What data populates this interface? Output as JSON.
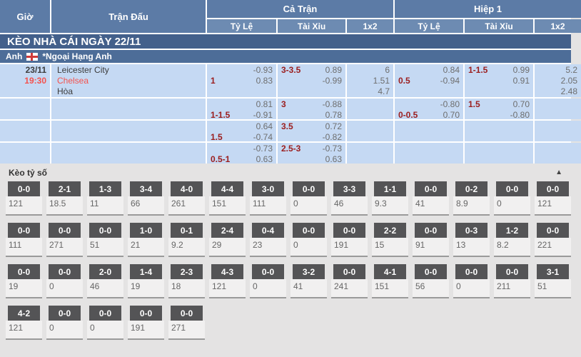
{
  "header": {
    "col_time": "Giờ",
    "col_match": "Trận Đấu",
    "group_full": "Cả Trận",
    "group_half": "Hiệp 1",
    "sub_odds": "Tỷ Lệ",
    "sub_ou": "Tài Xỉu",
    "sub_1x2": "1x2"
  },
  "section_title": "KÈO NHÀ CÁI NGÀY 22/11",
  "league": {
    "country": "Anh",
    "name": "*Ngoại Hạng Anh"
  },
  "match": {
    "date": "23/11",
    "time": "19:30",
    "home": "Leicester City",
    "away": "Chelsea",
    "draw_label": "Hòa"
  },
  "odds_rows": [
    {
      "ft_hdp": {
        "hcap": "1",
        "v1": "-0.93",
        "v2": "0.83"
      },
      "ft_ou": {
        "hcap": "3-3.5",
        "v1": "0.89",
        "v2": "-0.99"
      },
      "ft_1x2": [
        "6",
        "1.51",
        "4.7"
      ],
      "h1_hdp": {
        "hcap": "0.5",
        "v1": "0.84",
        "v2": "-0.94"
      },
      "h1_ou": {
        "hcap": "1-1.5",
        "v1": "0.99",
        "v2": "0.91"
      },
      "h1_1x2": [
        "5.2",
        "2.05",
        "2.48"
      ]
    },
    {
      "ft_hdp": {
        "hcap": "1-1.5",
        "v1": "0.81",
        "v2": "-0.91"
      },
      "ft_ou": {
        "hcap": "3",
        "v1": "-0.88",
        "v2": "0.78"
      },
      "ft_1x2": [],
      "h1_hdp": {
        "hcap": "0-0.5",
        "v1": "-0.80",
        "v2": "0.70"
      },
      "h1_ou": {
        "hcap": "1.5",
        "v1": "0.70",
        "v2": "-0.80"
      },
      "h1_1x2": []
    },
    {
      "ft_hdp": {
        "hcap": "1.5",
        "v1": "0.64",
        "v2": "-0.74"
      },
      "ft_ou": {
        "hcap": "3.5",
        "v1": "0.72",
        "v2": "-0.82"
      },
      "ft_1x2": [],
      "h1_hdp": null,
      "h1_ou": null,
      "h1_1x2": []
    },
    {
      "ft_hdp": {
        "hcap": "0.5-1",
        "v1": "-0.73",
        "v2": "0.63"
      },
      "ft_ou": {
        "hcap": "2.5-3",
        "v1": "-0.73",
        "v2": "0.63"
      },
      "ft_1x2": [],
      "h1_hdp": null,
      "h1_ou": null,
      "h1_1x2": []
    }
  ],
  "score_section": {
    "title": "Kèo tỷ số",
    "collapse_icon": "▲",
    "rows": [
      [
        {
          "score": "0-0",
          "odds": "121"
        },
        {
          "score": "2-1",
          "odds": "18.5"
        },
        {
          "score": "1-3",
          "odds": "11"
        },
        {
          "score": "3-4",
          "odds": "66"
        },
        {
          "score": "4-0",
          "odds": "261"
        },
        {
          "score": "4-4",
          "odds": "151"
        },
        {
          "score": "3-0",
          "odds": "111"
        },
        {
          "score": "0-0",
          "odds": "0"
        },
        {
          "score": "3-3",
          "odds": "46"
        },
        {
          "score": "1-1",
          "odds": "9.3"
        },
        {
          "score": "0-0",
          "odds": "41"
        },
        {
          "score": "0-2",
          "odds": "8.9"
        },
        {
          "score": "0-0",
          "odds": "0"
        },
        {
          "score": "0-0",
          "odds": "121"
        }
      ],
      [
        {
          "score": "0-0",
          "odds": "111"
        },
        {
          "score": "0-0",
          "odds": "271"
        },
        {
          "score": "0-0",
          "odds": "51"
        },
        {
          "score": "1-0",
          "odds": "21"
        },
        {
          "score": "0-1",
          "odds": "9.2"
        },
        {
          "score": "2-4",
          "odds": "29"
        },
        {
          "score": "0-4",
          "odds": "23"
        },
        {
          "score": "0-0",
          "odds": "0"
        },
        {
          "score": "0-0",
          "odds": "191"
        },
        {
          "score": "2-2",
          "odds": "15"
        },
        {
          "score": "0-0",
          "odds": "91"
        },
        {
          "score": "0-3",
          "odds": "13"
        },
        {
          "score": "1-2",
          "odds": "8.2"
        },
        {
          "score": "0-0",
          "odds": "221"
        }
      ],
      [
        {
          "score": "0-0",
          "odds": "19"
        },
        {
          "score": "0-0",
          "odds": "0"
        },
        {
          "score": "2-0",
          "odds": "46"
        },
        {
          "score": "1-4",
          "odds": "19"
        },
        {
          "score": "2-3",
          "odds": "18"
        },
        {
          "score": "4-3",
          "odds": "121"
        },
        {
          "score": "0-0",
          "odds": "0"
        },
        {
          "score": "3-2",
          "odds": "41"
        },
        {
          "score": "0-0",
          "odds": "241"
        },
        {
          "score": "4-1",
          "odds": "151"
        },
        {
          "score": "0-0",
          "odds": "56"
        },
        {
          "score": "0-0",
          "odds": "0"
        },
        {
          "score": "0-0",
          "odds": "211"
        },
        {
          "score": "3-1",
          "odds": "51"
        }
      ],
      [
        {
          "score": "4-2",
          "odds": "121"
        },
        {
          "score": "0-0",
          "odds": "0"
        },
        {
          "score": "0-0",
          "odds": "0"
        },
        {
          "score": "0-0",
          "odds": "191"
        },
        {
          "score": "0-0",
          "odds": "271"
        }
      ]
    ]
  }
}
